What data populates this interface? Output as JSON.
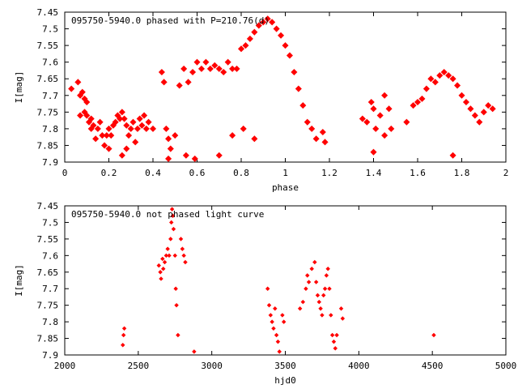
{
  "colors": {
    "points": "#ff0000",
    "axes": "#000000",
    "background": "#ffffff"
  },
  "chart_data": [
    {
      "type": "scatter",
      "title": "095750-5940.0 phased with P=210.76(d)",
      "xlabel": "phase",
      "ylabel": "I[mag]",
      "xlim": [
        0,
        2
      ],
      "ylim": [
        7.45,
        7.9
      ],
      "y_inverted": true,
      "xticks": [
        "0",
        "0.2",
        "0.4",
        "0.6",
        "0.8",
        "1",
        "1.2",
        "1.4",
        "1.6",
        "1.8",
        "2"
      ],
      "xtick_values": [
        0,
        0.2,
        0.4,
        0.6,
        0.8,
        1.0,
        1.2,
        1.4,
        1.6,
        1.8,
        2.0
      ],
      "yticks": [
        "7.45",
        "7.5",
        "7.55",
        "7.6",
        "7.65",
        "7.7",
        "7.75",
        "7.8",
        "7.85",
        "7.9"
      ],
      "ytick_values": [
        7.45,
        7.5,
        7.55,
        7.6,
        7.65,
        7.7,
        7.75,
        7.8,
        7.85,
        7.9
      ],
      "grid": false,
      "legend": "none",
      "marker": "filled-diamond-large",
      "x": [
        0.03,
        0.06,
        0.07,
        0.07,
        0.08,
        0.09,
        0.09,
        0.1,
        0.1,
        0.11,
        0.12,
        0.12,
        0.13,
        0.14,
        0.15,
        0.16,
        0.17,
        0.18,
        0.19,
        0.2,
        0.21,
        0.22,
        0.23,
        0.24,
        0.25,
        0.26,
        0.27,
        0.28,
        0.29,
        0.3,
        0.31,
        0.32,
        0.33,
        0.34,
        0.35,
        0.36,
        0.37,
        0.38,
        0.4,
        0.44,
        0.45,
        0.46,
        0.47,
        0.48,
        0.5,
        0.52,
        0.54,
        0.56,
        0.58,
        0.6,
        0.62,
        0.64,
        0.66,
        0.68,
        0.7,
        0.72,
        0.74,
        0.76,
        0.78,
        0.8,
        0.82,
        0.84,
        0.86,
        0.88,
        0.9,
        0.92,
        0.94,
        0.96,
        0.98,
        1.0,
        1.02,
        1.04,
        1.06,
        1.08,
        1.1,
        1.12,
        1.14,
        1.17,
        1.35,
        1.37,
        1.39,
        1.4,
        1.41,
        1.43,
        1.45,
        1.47,
        1.48,
        1.55,
        1.58,
        1.6,
        1.62,
        1.64,
        1.66,
        1.68,
        1.7,
        1.72,
        1.74,
        1.76,
        1.78,
        1.8,
        1.82,
        1.84,
        1.86,
        1.88,
        1.9,
        1.92,
        1.94,
        0.2,
        0.26,
        0.28,
        0.47,
        0.55,
        0.59,
        0.7,
        0.76,
        0.81,
        0.86,
        1.18,
        1.4,
        1.45,
        1.76
      ],
      "y": [
        7.68,
        7.66,
        7.7,
        7.76,
        7.69,
        7.71,
        7.75,
        7.72,
        7.76,
        7.78,
        7.8,
        7.77,
        7.79,
        7.83,
        7.8,
        7.78,
        7.82,
        7.85,
        7.82,
        7.8,
        7.82,
        7.79,
        7.78,
        7.76,
        7.77,
        7.75,
        7.77,
        7.79,
        7.82,
        7.8,
        7.78,
        7.84,
        7.8,
        7.77,
        7.79,
        7.76,
        7.8,
        7.78,
        7.8,
        7.63,
        7.66,
        7.8,
        7.83,
        7.86,
        7.82,
        7.67,
        7.62,
        7.66,
        7.63,
        7.6,
        7.62,
        7.6,
        7.62,
        7.61,
        7.62,
        7.63,
        7.6,
        7.62,
        7.62,
        7.56,
        7.55,
        7.53,
        7.51,
        7.49,
        7.48,
        7.47,
        7.48,
        7.5,
        7.52,
        7.55,
        7.58,
        7.63,
        7.68,
        7.73,
        7.78,
        7.8,
        7.83,
        7.81,
        7.77,
        7.78,
        7.72,
        7.74,
        7.8,
        7.76,
        7.7,
        7.74,
        7.8,
        7.78,
        7.73,
        7.72,
        7.71,
        7.68,
        7.65,
        7.66,
        7.64,
        7.63,
        7.64,
        7.65,
        7.67,
        7.7,
        7.72,
        7.74,
        7.76,
        7.78,
        7.75,
        7.73,
        7.74,
        7.86,
        7.88,
        7.86,
        7.89,
        7.88,
        7.89,
        7.88,
        7.82,
        7.8,
        7.83,
        7.84,
        7.87,
        7.82,
        7.88
      ]
    },
    {
      "type": "scatter",
      "title": "095750-5940.0 not phased light curve",
      "xlabel": "hjd0",
      "ylabel": "I[mag]",
      "xlim": [
        2000,
        5000
      ],
      "ylim": [
        7.45,
        7.9
      ],
      "y_inverted": true,
      "xticks": [
        "2000",
        "2500",
        "3000",
        "3500",
        "4000",
        "4500",
        "5000"
      ],
      "xtick_values": [
        2000,
        2500,
        3000,
        3500,
        4000,
        4500,
        5000
      ],
      "yticks": [
        "7.45",
        "7.5",
        "7.55",
        "7.6",
        "7.65",
        "7.7",
        "7.75",
        "7.8",
        "7.85",
        "7.9"
      ],
      "ytick_values": [
        7.45,
        7.5,
        7.55,
        7.6,
        7.65,
        7.7,
        7.75,
        7.8,
        7.85,
        7.9
      ],
      "grid": false,
      "legend": "none",
      "marker": "filled-diamond-small",
      "x": [
        2395,
        2400,
        2405,
        2640,
        2650,
        2655,
        2665,
        2670,
        2680,
        2690,
        2700,
        2710,
        2720,
        2725,
        2730,
        2735,
        2740,
        2750,
        2755,
        2760,
        2770,
        2790,
        2800,
        2810,
        2820,
        2880,
        3380,
        3390,
        3400,
        3410,
        3420,
        3430,
        3440,
        3450,
        3460,
        3480,
        3490,
        3600,
        3620,
        3640,
        3650,
        3660,
        3680,
        3700,
        3710,
        3720,
        3730,
        3740,
        3750,
        3760,
        3770,
        3780,
        3790,
        3800,
        3810,
        3820,
        3830,
        3840,
        3850,
        3880,
        3890,
        4510
      ],
      "y": [
        7.87,
        7.84,
        7.82,
        7.63,
        7.65,
        7.67,
        7.61,
        7.64,
        7.62,
        7.6,
        7.58,
        7.6,
        7.55,
        7.5,
        7.46,
        7.48,
        7.52,
        7.6,
        7.7,
        7.75,
        7.84,
        7.55,
        7.58,
        7.6,
        7.62,
        7.89,
        7.7,
        7.75,
        7.78,
        7.8,
        7.82,
        7.76,
        7.84,
        7.86,
        7.89,
        7.78,
        7.8,
        7.76,
        7.74,
        7.7,
        7.66,
        7.68,
        7.64,
        7.62,
        7.68,
        7.72,
        7.74,
        7.76,
        7.78,
        7.72,
        7.7,
        7.66,
        7.64,
        7.7,
        7.78,
        7.84,
        7.86,
        7.88,
        7.84,
        7.76,
        7.79,
        7.84
      ]
    }
  ]
}
